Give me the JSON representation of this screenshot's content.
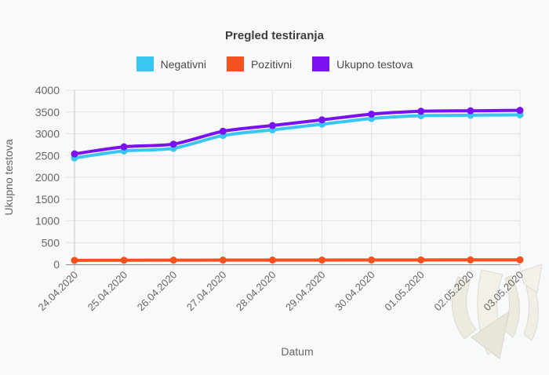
{
  "page": {
    "background": "#f8f9fa"
  },
  "chart_data": {
    "type": "line",
    "title": "Pregled testiranja",
    "xlabel": "Datum",
    "ylabel": "Ukupno testova",
    "ylim": [
      0,
      4000
    ],
    "ytick_step": 500,
    "grid": true,
    "legend_position": "top",
    "categories": [
      "24.04.2020",
      "25.04.2020",
      "26.04.2020",
      "27.04.2020",
      "28.04.2020",
      "29.04.2020",
      "30.04.2020",
      "01.05.2020",
      "02.05.2020",
      "03.05.2020"
    ],
    "series": [
      {
        "name": "Negativni",
        "color": "#39c6f0",
        "values": [
          2445,
          2605,
          2665,
          2960,
          3090,
          3220,
          3350,
          3415,
          3425,
          3435
        ]
      },
      {
        "name": "Pozitivni",
        "color": "#f4511e",
        "values": [
          93,
          95,
          97,
          98,
          99,
          100,
          101,
          102,
          103,
          103
        ]
      },
      {
        "name": "Ukupno testova",
        "color": "#7b11f2",
        "values": [
          2538,
          2700,
          2762,
          3058,
          3189,
          3320,
          3451,
          3517,
          3528,
          3538
        ]
      }
    ]
  }
}
